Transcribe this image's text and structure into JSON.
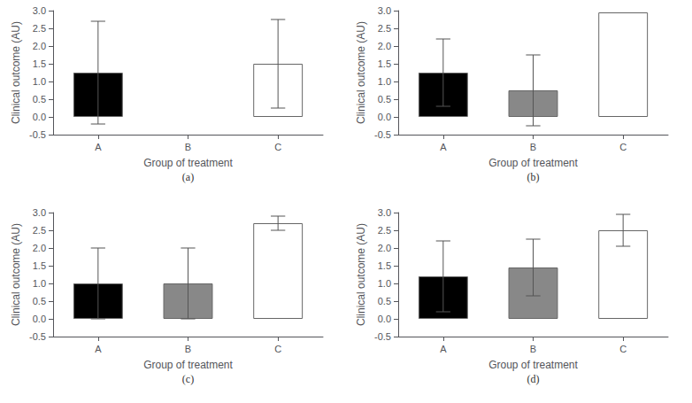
{
  "chart_data": [
    {
      "type": "bar",
      "title": "(a)",
      "xlabel": "Group of treatment",
      "ylabel": "Clinical outcome (AU)",
      "categories": [
        "A",
        "B",
        "C"
      ],
      "values": [
        1.25,
        0.0,
        1.5
      ],
      "errors": [
        1.45,
        0.0,
        1.25
      ],
      "colors": [
        "#000000",
        "#ffffff",
        "#ffffff"
      ],
      "ylim": [
        -0.5,
        3.0
      ],
      "yticks": [
        -0.5,
        {
          "value": 0,
          "label": "0.0"
        },
        0.5,
        {
          "value": 1,
          "label": "1.0"
        },
        1.5,
        {
          "value": 2,
          "label": "2.0"
        },
        2.5,
        {
          "value": 3,
          "label": "3.0"
        }
      ],
      "grid": false
    },
    {
      "type": "bar",
      "title": "(b)",
      "xlabel": "Group of treatment",
      "ylabel": "Clinical outcome (AU)",
      "categories": [
        "A",
        "B",
        "C"
      ],
      "values": [
        1.25,
        0.75,
        2.95
      ],
      "errors": [
        0.95,
        1.0,
        0.0
      ],
      "colors": [
        "#000000",
        "#888888",
        "#ffffff"
      ],
      "ylim": [
        -0.5,
        3.0
      ],
      "yticks": [
        -0.5,
        {
          "value": 0,
          "label": "0.0"
        },
        0.5,
        {
          "value": 1,
          "label": "1.0"
        },
        1.5,
        {
          "value": 2,
          "label": "2.0"
        },
        2.5,
        {
          "value": 3,
          "label": "3.0"
        }
      ],
      "grid": false
    },
    {
      "type": "bar",
      "title": "(c)",
      "xlabel": "Group of treatment",
      "ylabel": "Clinical outcome (AU)",
      "categories": [
        "A",
        "B",
        "C"
      ],
      "values": [
        1.0,
        1.0,
        2.7
      ],
      "errors": [
        1.0,
        1.0,
        0.2
      ],
      "colors": [
        "#000000",
        "#888888",
        "#ffffff"
      ],
      "ylim": [
        -0.5,
        3.0
      ],
      "yticks": [
        -0.5,
        {
          "value": 0,
          "label": "0.0"
        },
        0.5,
        {
          "value": 1,
          "label": "1.0"
        },
        1.5,
        {
          "value": 2,
          "label": "2.0"
        },
        2.5,
        {
          "value": 3,
          "label": "3.0"
        }
      ],
      "grid": false
    },
    {
      "type": "bar",
      "title": "(d)",
      "xlabel": "Group of treatment",
      "ylabel": "Clinical outcome (AU)",
      "categories": [
        "A",
        "B",
        "C"
      ],
      "values": [
        1.2,
        1.45,
        2.5
      ],
      "errors": [
        1.0,
        0.8,
        0.45
      ],
      "colors": [
        "#000000",
        "#888888",
        "#ffffff"
      ],
      "ylim": [
        -0.5,
        3.0
      ],
      "yticks": [
        -0.5,
        {
          "value": 0,
          "label": "0.0"
        },
        0.5,
        {
          "value": 1,
          "label": "1.0"
        },
        1.5,
        {
          "value": 2,
          "label": "2.0"
        },
        2.5,
        {
          "value": 3,
          "label": "3.0"
        }
      ],
      "grid": false
    }
  ]
}
